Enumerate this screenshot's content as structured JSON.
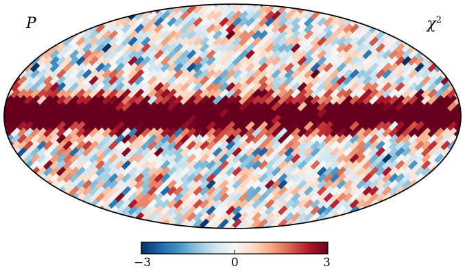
{
  "labels": {
    "left": "P",
    "right_base": "χ",
    "right_exp": "2"
  },
  "colorbar": {
    "min_label": "−3",
    "mid_label": "0",
    "max_label": "3",
    "min": -3,
    "max": 3,
    "colormap": "RdBu_r",
    "colors": [
      "#053061",
      "#2166ac",
      "#4393c3",
      "#92c5de",
      "#d1e5f0",
      "#f7f7f7",
      "#fddbc7",
      "#f4a582",
      "#d6604d",
      "#b2182b",
      "#67001f"
    ]
  },
  "map": {
    "projection": "mollweide",
    "frame_color": "#000000",
    "background_color": "#ffffff"
  }
}
